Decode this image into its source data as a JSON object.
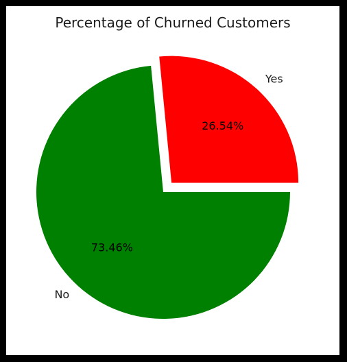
{
  "chart_data": {
    "type": "pie",
    "title": "Percentage of Churned Customers",
    "slices": [
      {
        "label": "No",
        "value": 73.46,
        "pct_label": "73.46%",
        "color": "#008000",
        "explode": false
      },
      {
        "label": "Yes",
        "value": 26.54,
        "pct_label": "26.54%",
        "color": "#ff0000",
        "explode": true
      }
    ]
  }
}
